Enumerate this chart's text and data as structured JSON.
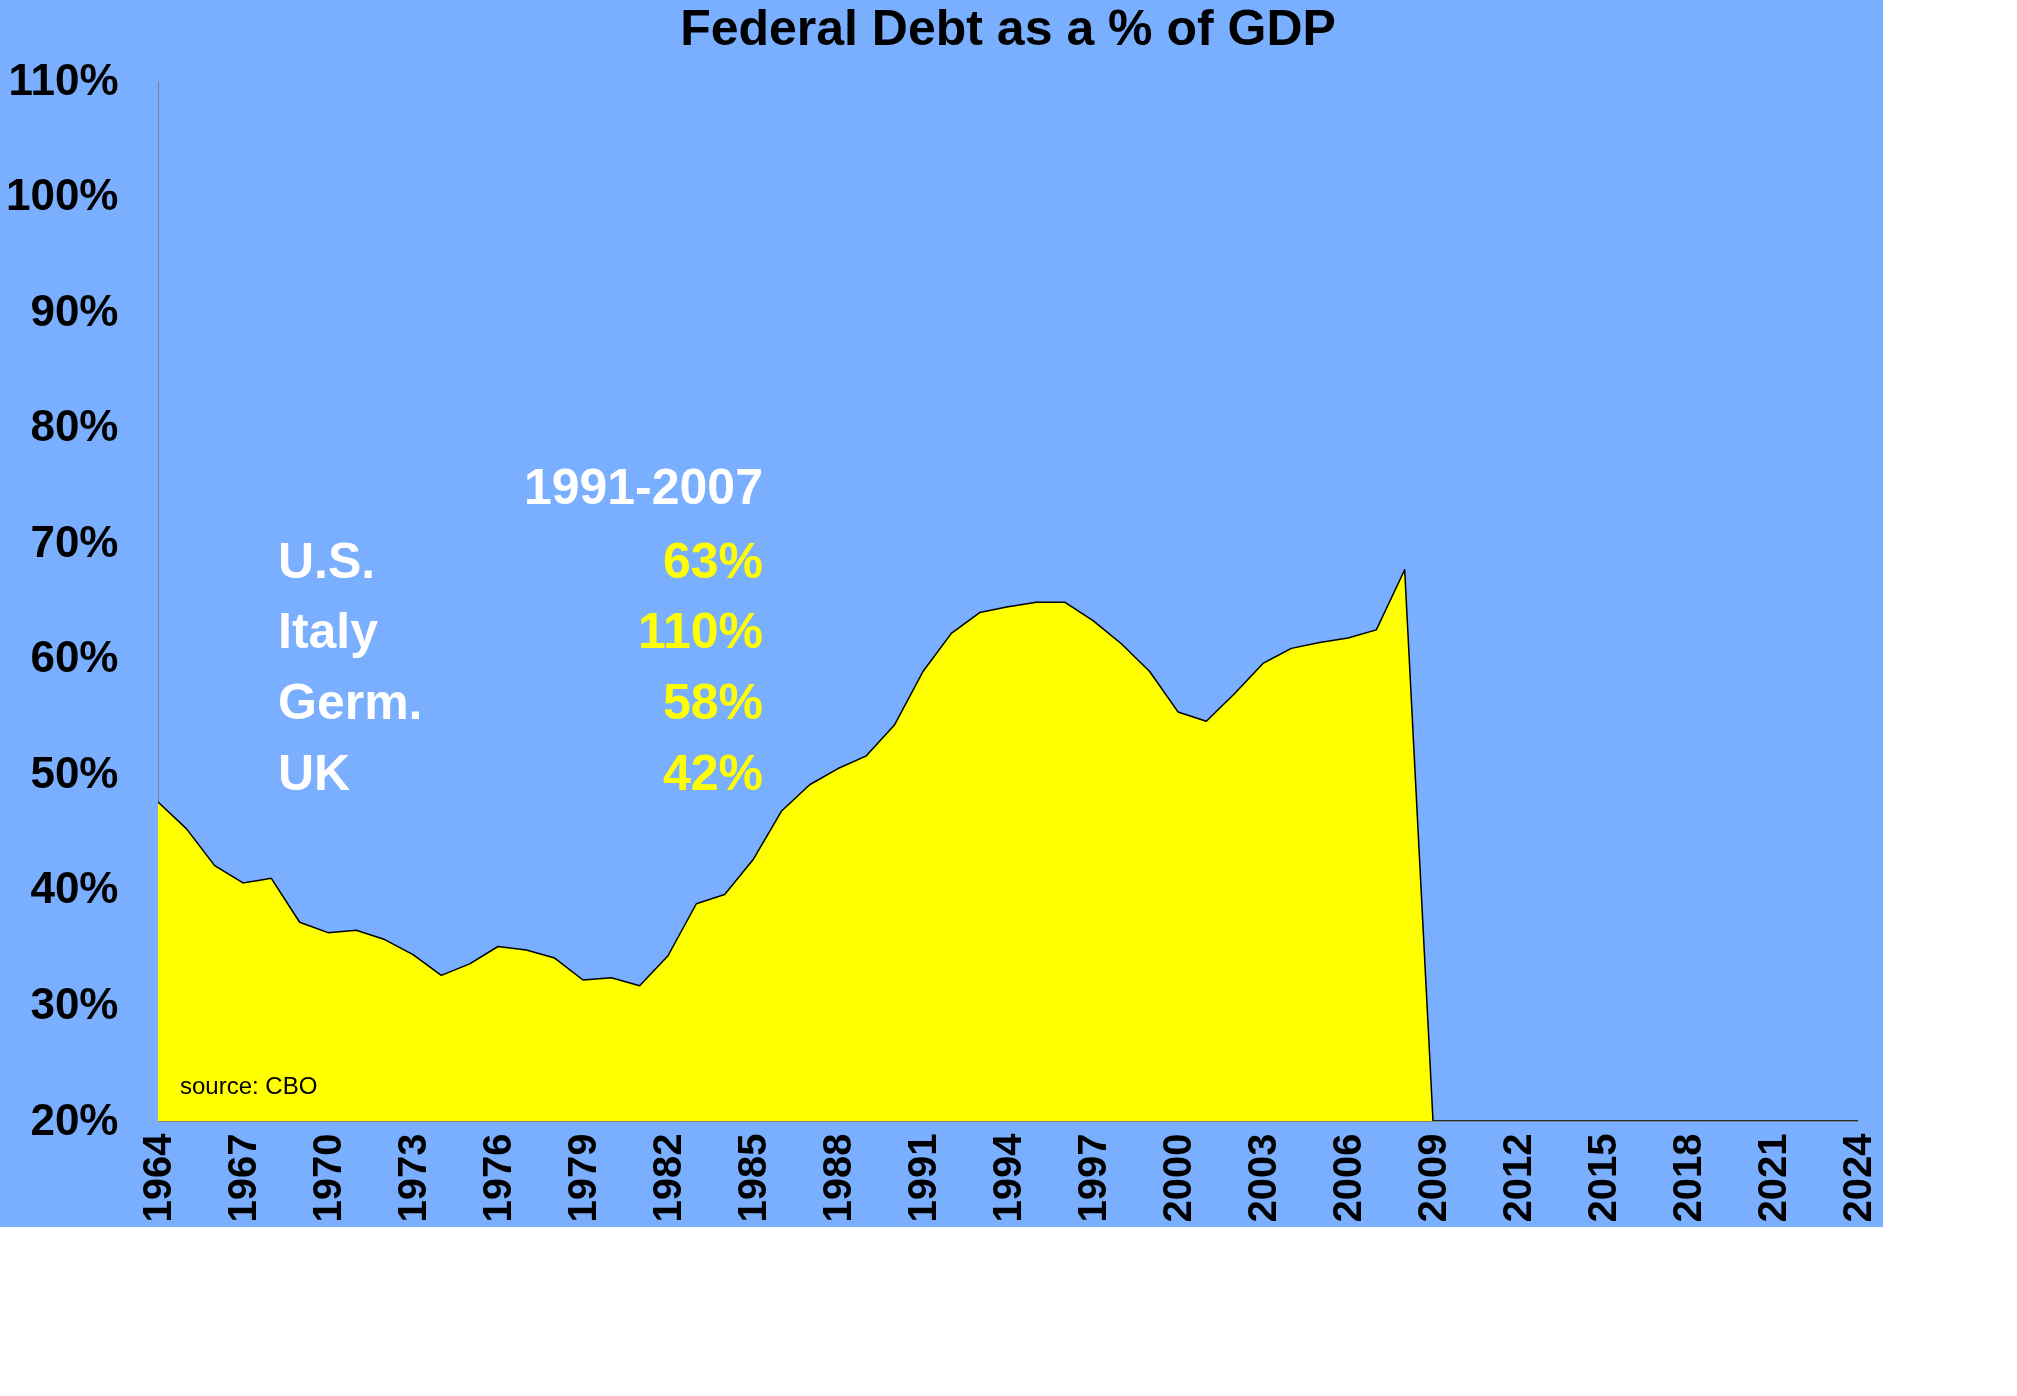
{
  "chart_data": {
    "type": "area",
    "title": "Federal Debt as a % of GDP",
    "x": [
      1964,
      1965,
      1966,
      1967,
      1968,
      1969,
      1970,
      1971,
      1972,
      1973,
      1974,
      1975,
      1976,
      1977,
      1978,
      1979,
      1980,
      1981,
      1982,
      1983,
      1984,
      1985,
      1986,
      1987,
      1988,
      1989,
      1990,
      1991,
      1992,
      1993,
      1994,
      1995,
      1996,
      1997,
      1998,
      1999,
      2000,
      2001,
      2002,
      2003,
      2004,
      2005,
      2006,
      2007,
      2008,
      2009,
      2010,
      2011,
      2012,
      2013,
      2014,
      2015,
      2016,
      2017,
      2018,
      2019,
      2020,
      2021,
      2022,
      2023,
      2024
    ],
    "series": [
      {
        "color": "#ffff00",
        "values": [
          47.6,
          45.3,
          42.1,
          40.6,
          41.0,
          37.2,
          36.3,
          36.5,
          35.7,
          34.4,
          32.6,
          33.6,
          35.1,
          34.8,
          34.1,
          32.2,
          32.4,
          31.7,
          34.3,
          38.8,
          39.6,
          42.6,
          46.8,
          49.1,
          50.5,
          51.6,
          54.3,
          58.9,
          62.2,
          64.0,
          64.5,
          64.9,
          64.9,
          63.3,
          61.3,
          58.9,
          55.4,
          54.6,
          57.0,
          59.6,
          60.9,
          61.4,
          61.8,
          62.5,
          67.7,
          20,
          20,
          20,
          20,
          20,
          20,
          20,
          20,
          20,
          20,
          20,
          20,
          20,
          20,
          20,
          20
        ]
      }
    ],
    "xlim": [
      1964,
      2024
    ],
    "xticks": [
      1964,
      1967,
      1970,
      1973,
      1976,
      1979,
      1982,
      1985,
      1988,
      1991,
      1994,
      1997,
      2000,
      2003,
      2006,
      2009,
      2012,
      2015,
      2018,
      2021,
      2024
    ],
    "ylim": [
      20,
      110
    ],
    "yticks": [
      {
        "value": 20,
        "label": "20%"
      },
      {
        "value": 30,
        "label": "30%"
      },
      {
        "value": 40,
        "label": "40%"
      },
      {
        "value": 50,
        "label": "50%"
      },
      {
        "value": 60,
        "label": "60%"
      },
      {
        "value": 70,
        "label": "70%"
      },
      {
        "value": 80,
        "label": "80%"
      },
      {
        "value": 90,
        "label": "90%"
      },
      {
        "value": 100,
        "label": "100%"
      },
      {
        "value": 110,
        "label": "110%"
      }
    ],
    "grid": false,
    "annotations": [
      "1991-2007",
      "U.S.",
      "63%",
      "Italy",
      "110%",
      "Germ.",
      "58%",
      "UK",
      "42%",
      "source: CBO"
    ]
  }
}
